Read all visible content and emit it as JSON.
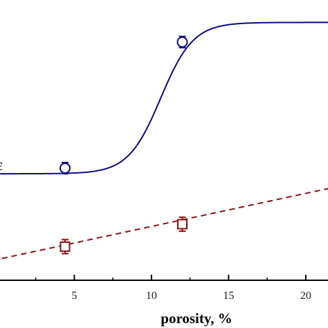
{
  "chart_data": {
    "type": "scatter",
    "title": "",
    "xlabel": "porosity, %",
    "ylabel": "",
    "x_ticks": [
      5,
      10,
      15,
      20
    ],
    "xlim": [
      0.2,
      22.4
    ],
    "ylim": [
      0,
      1
    ],
    "grid": false,
    "partial_label": "ε",
    "series": [
      {
        "marker": "circle",
        "color": "#0a0a82",
        "fit": "sigmoid",
        "fit_style": "solid",
        "fit_params": {
          "low": 0.38,
          "high": 0.92,
          "x0": 10.6,
          "k": 0.95
        },
        "points": [
          {
            "x": 4.4,
            "y": 0.4,
            "err": 0.02
          },
          {
            "x": 12.0,
            "y": 0.85,
            "err": 0.02
          }
        ]
      },
      {
        "marker": "square",
        "color": "#8c1010",
        "fit": "linear",
        "fit_style": "dashed",
        "fit_params": {
          "slope": 0.0118,
          "intercept": 0.074
        },
        "points": [
          {
            "x": 4.4,
            "y": 0.12,
            "err": 0.025
          },
          {
            "x": 12.0,
            "y": 0.2,
            "err": 0.025
          }
        ]
      }
    ]
  }
}
